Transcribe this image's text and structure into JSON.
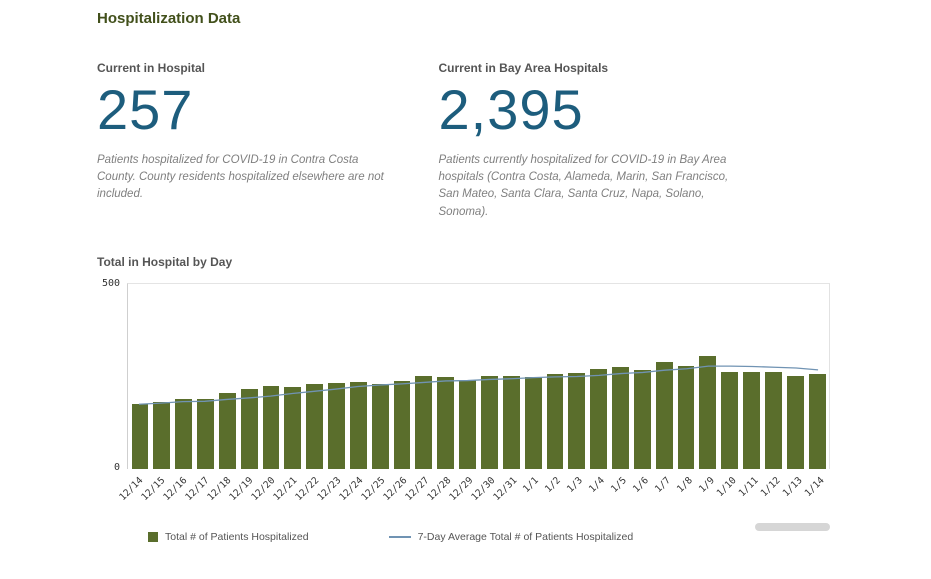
{
  "page": {
    "title": "Hospitalization Data"
  },
  "stats": [
    {
      "label": "Current in Hospital",
      "value": "257",
      "caption": "Patients hospitalized for COVID-19 in Contra Costa County. County residents hospitalized elsewhere are not included."
    },
    {
      "label": "Current in Bay Area Hospitals",
      "value": "2,395",
      "caption": "Patients currently hospitalized for COVID-19 in Bay Area hospitals (Contra Costa, Alameda, Marin, San Francisco, San Mateo, Santa Clara, Santa Cruz, Napa, Solano, Sonoma)."
    }
  ],
  "colors": {
    "heading": "#42501b",
    "stat_number": "#1d5d7d",
    "bar": "#5a6e2c",
    "line": "#7093b3"
  },
  "chart_data": {
    "type": "bar",
    "title": "Total in Hospital by Day",
    "categories": [
      "12/14",
      "12/15",
      "12/16",
      "12/17",
      "12/18",
      "12/19",
      "12/20",
      "12/21",
      "12/22",
      "12/23",
      "12/24",
      "12/25",
      "12/26",
      "12/27",
      "12/28",
      "12/29",
      "12/30",
      "12/31",
      "1/1",
      "1/2",
      "1/3",
      "1/4",
      "1/5",
      "1/6",
      "1/7",
      "1/8",
      "1/9",
      "1/10",
      "1/11",
      "1/12",
      "1/13",
      "1/14"
    ],
    "series": [
      {
        "name": "Total # of Patients Hospitalized",
        "type": "bar",
        "color": "#5a6e2c",
        "values": [
          175,
          180,
          190,
          188,
          205,
          215,
          225,
          222,
          228,
          232,
          235,
          230,
          238,
          252,
          248,
          240,
          250,
          250,
          248,
          255,
          260,
          270,
          275,
          268,
          290,
          278,
          305,
          262,
          262,
          263,
          250,
          257
        ]
      },
      {
        "name": "7-Day Average Total # of Patients Hospitalized",
        "type": "line",
        "color": "#7093b3",
        "values": [
          175,
          178,
          182,
          183,
          188,
          192,
          197,
          204,
          210,
          216,
          223,
          227,
          230,
          234,
          238,
          239,
          242,
          244,
          247,
          249,
          250,
          253,
          258,
          261,
          267,
          271,
          278,
          278,
          277,
          275,
          273,
          268
        ]
      }
    ],
    "ylim": [
      0,
      500
    ],
    "yticks": [
      0,
      500
    ],
    "xlabel": "",
    "ylabel": "",
    "grid": false,
    "legend_position": "bottom"
  }
}
